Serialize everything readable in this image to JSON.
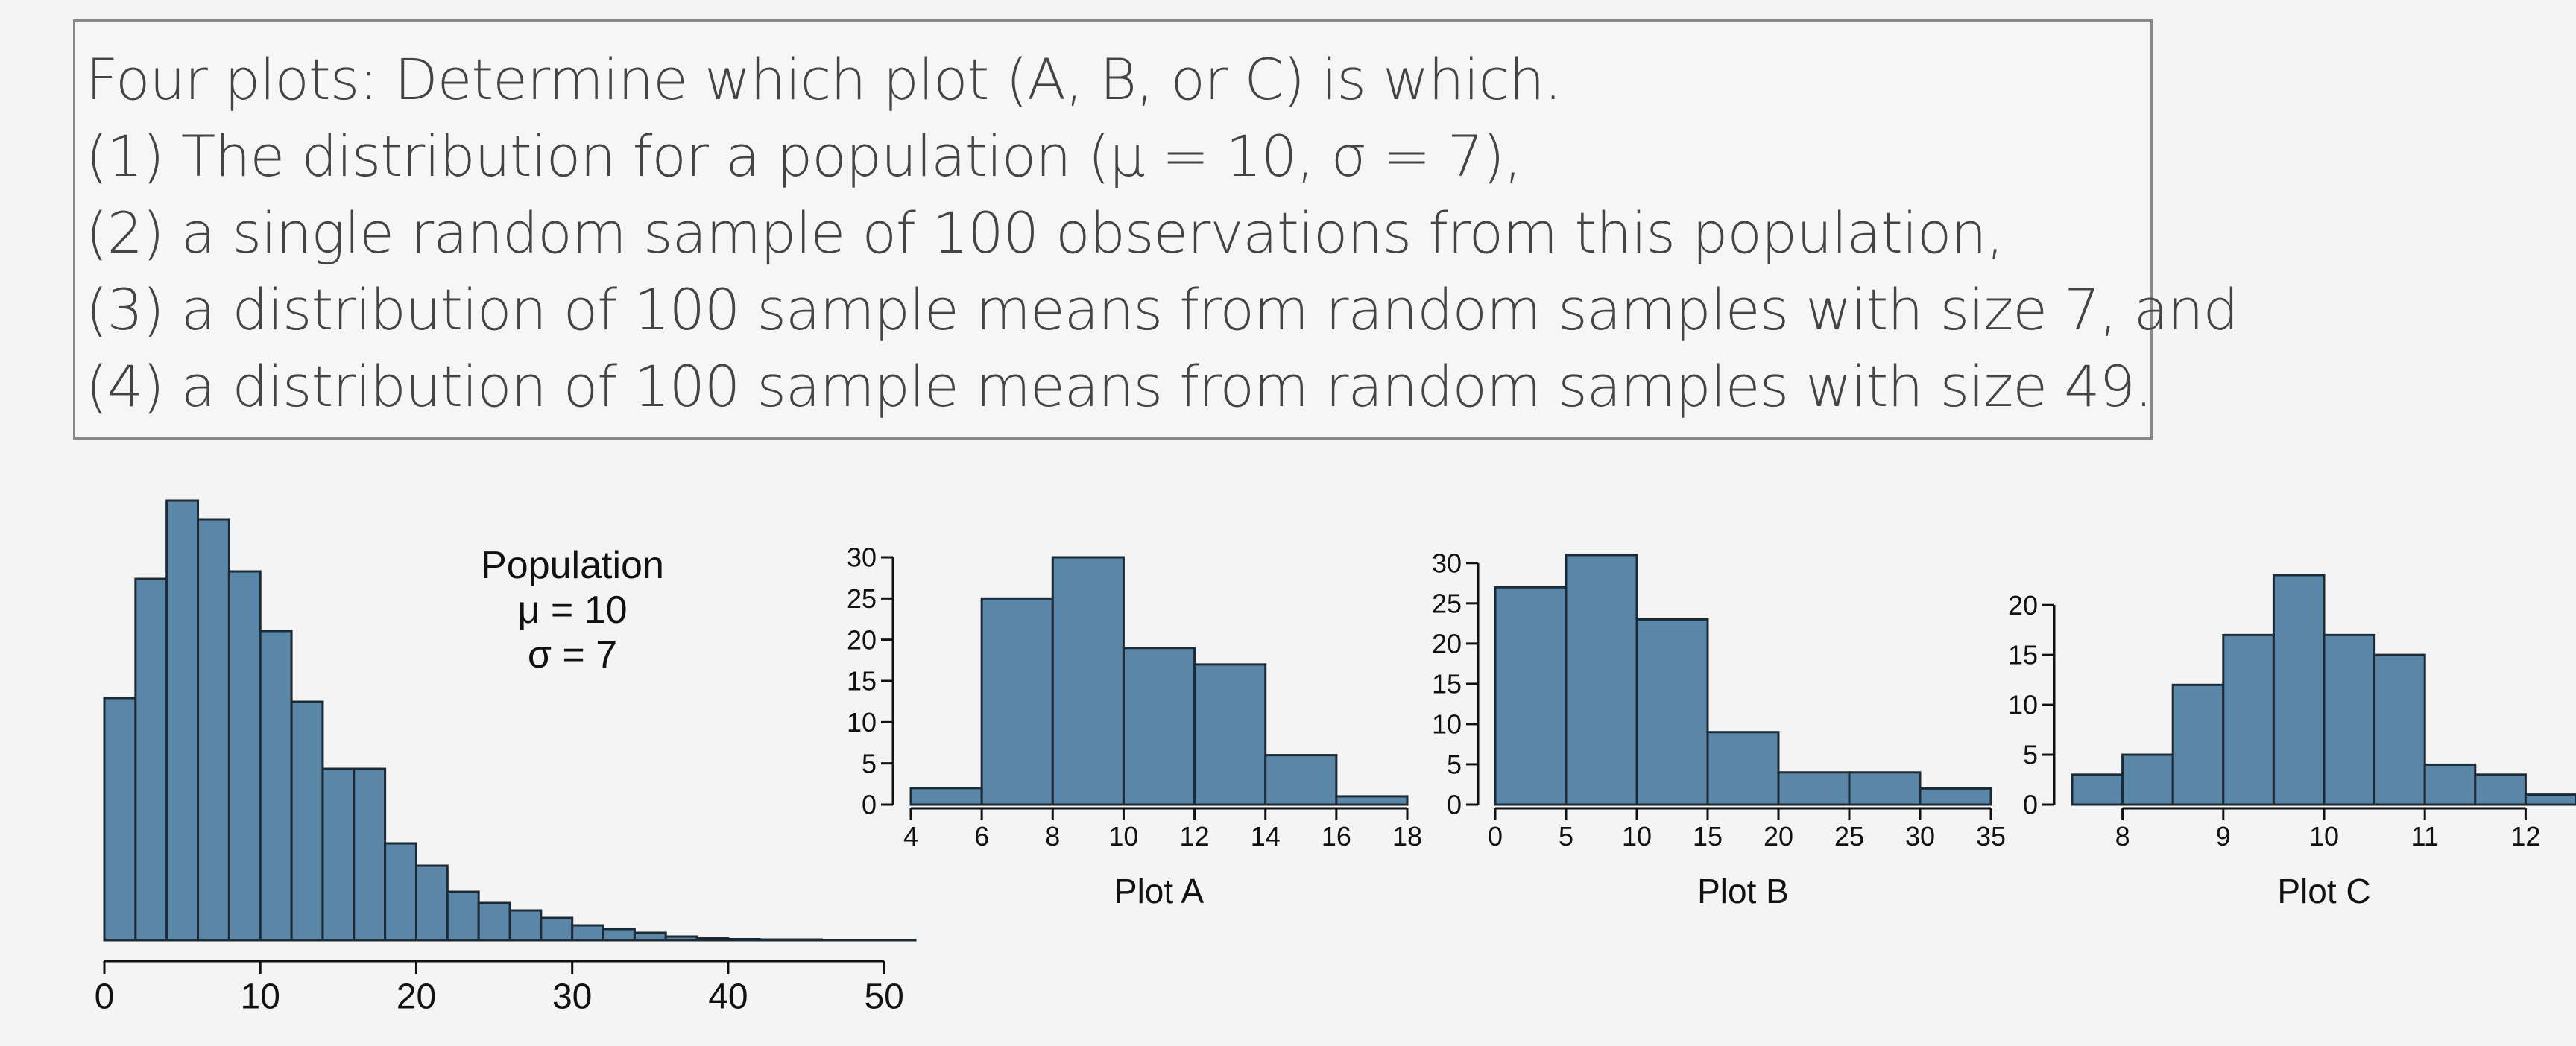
{
  "text": {
    "lines": [
      "Four plots: Determine which plot (A, B, or C) is which.",
      "(1) The distribution for a population (μ = 10, σ = 7),",
      "(2) a single random sample of 100 observations from this population,",
      "(3) a distribution of 100 sample means from random samples with size 7, and",
      "(4) a distribution of 100 sample means from random samples with size 49."
    ]
  },
  "colors": {
    "bar_fill": "#5a87a8",
    "bar_stroke": "#1c2a36",
    "axis": "#111111"
  },
  "chart_data": [
    {
      "type": "bar",
      "subtype": "histogram",
      "title": "",
      "annotation": [
        "Population",
        "μ = 10",
        "σ = 7"
      ],
      "bin_width": 2,
      "x_bins_start": 0,
      "values": [
        65,
        97,
        118,
        113,
        99,
        83,
        64,
        46,
        46,
        26,
        20,
        13,
        10,
        8,
        6,
        4,
        3,
        2,
        1,
        0.5,
        0.3,
        0.2,
        0.2,
        0.1,
        0.1,
        0.1
      ],
      "xlim": [
        0,
        52
      ],
      "ylim": [
        0,
        120
      ],
      "x_ticks": [
        0,
        10,
        20,
        30,
        40,
        50
      ],
      "y_ticks": [],
      "xlabel": "",
      "ylabel": ""
    },
    {
      "type": "bar",
      "subtype": "histogram",
      "title": "Plot A",
      "bin_width": 2,
      "x_bins_start": 4,
      "values": [
        2,
        25,
        30,
        19,
        17,
        6,
        1
      ],
      "xlim": [
        4,
        18
      ],
      "ylim": [
        0,
        30
      ],
      "x_ticks": [
        4,
        6,
        8,
        10,
        12,
        14,
        16,
        18
      ],
      "y_ticks": [
        0,
        5,
        10,
        15,
        20,
        25,
        30
      ],
      "xlabel": "Plot A",
      "ylabel": ""
    },
    {
      "type": "bar",
      "subtype": "histogram",
      "title": "Plot B",
      "bin_width": 5,
      "x_bins_start": 0,
      "values": [
        27,
        31,
        23,
        9,
        4,
        4,
        2
      ],
      "xlim": [
        0,
        35
      ],
      "ylim": [
        0,
        31
      ],
      "x_ticks": [
        0,
        5,
        10,
        15,
        20,
        25,
        30,
        35
      ],
      "y_ticks": [
        0,
        5,
        10,
        15,
        20,
        25,
        30
      ],
      "xlabel": "Plot B",
      "ylabel": ""
    },
    {
      "type": "bar",
      "subtype": "histogram",
      "title": "Plot C",
      "bin_width": 0.5,
      "x_bins_start": 7.5,
      "values": [
        3,
        5,
        12,
        17,
        23,
        17,
        15,
        4,
        3,
        1
      ],
      "xlim": [
        7.5,
        12.5
      ],
      "ylim": [
        0,
        23
      ],
      "x_ticks": [
        8,
        9,
        10,
        11,
        12
      ],
      "y_ticks": [
        0,
        5,
        10,
        15,
        20
      ],
      "xlabel": "Plot C",
      "ylabel": ""
    }
  ]
}
